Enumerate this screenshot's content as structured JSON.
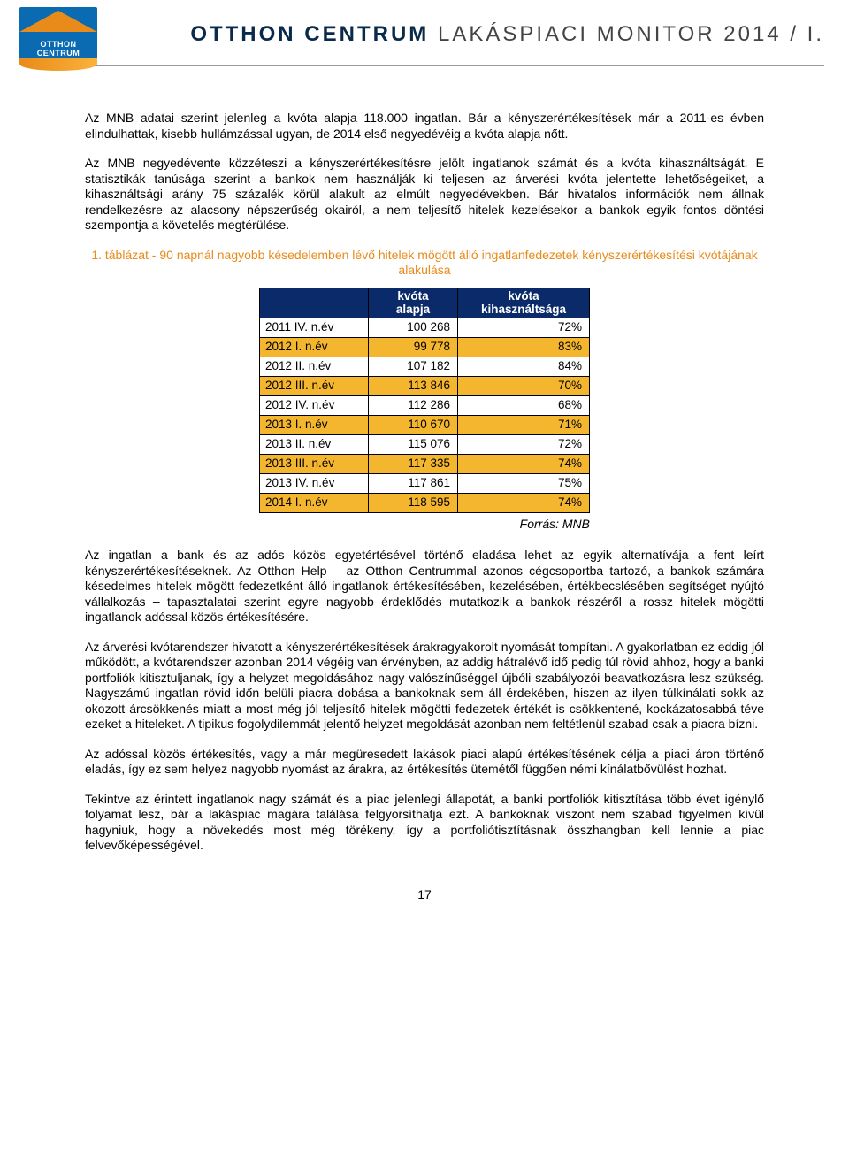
{
  "header": {
    "logo_line1": "OTTHON",
    "logo_line2": "CENTRUM",
    "title_bold": "OTTHON CENTRUM",
    "title_light": "LAKÁSPIACI MONITOR",
    "title_year": "2014 / I."
  },
  "body": {
    "p1": "Az MNB adatai szerint jelenleg a kvóta alapja 118.000 ingatlan. Bár a kényszerértékesítések már a 2011-es évben elindulhattak, kisebb hullámzással ugyan, de 2014 első negyedévéig a kvóta alapja nőtt.",
    "p2": "Az MNB negyedévente közzéteszi a kényszerértékesítésre jelölt ingatlanok számát és a kvóta kihasználtságát. E statisztikák tanúsága szerint a bankok nem használják ki teljesen az árverési kvóta jelentette lehetőségeiket, a kihasználtsági arány 75 százalék körül alakult az elmúlt negyedévekben. Bár hivatalos információk nem állnak rendelkezésre az alacsony népszerűség okairól, a nem teljesítő hitelek kezelésekor a bankok egyik fontos döntési szempontja a követelés megtérülése.",
    "caption": "1. táblázat - 90 napnál nagyobb késedelemben lévő hitelek mögött álló ingatlanfedezetek kényszerértékesítési kvótájának alakulása",
    "table": {
      "header_col1": "",
      "header_col2_line1": "kvóta",
      "header_col2_line2": "alapja",
      "header_col3_line1": "kvóta",
      "header_col3_line2": "kihasználtsága",
      "rows": [
        {
          "period": "2011 IV. n.év",
          "v1": "100 268",
          "v2": "72%",
          "band": false
        },
        {
          "period": "2012 I. n.év",
          "v1": "99 778",
          "v2": "83%",
          "band": true
        },
        {
          "period": "2012 II. n.év",
          "v1": "107 182",
          "v2": "84%",
          "band": false
        },
        {
          "period": "2012 III. n.év",
          "v1": "113 846",
          "v2": "70%",
          "band": true
        },
        {
          "period": "2012 IV. n.év",
          "v1": "112 286",
          "v2": "68%",
          "band": false
        },
        {
          "period": "2013 I. n.év",
          "v1": "110 670",
          "v2": "71%",
          "band": true
        },
        {
          "period": "2013 II. n.év",
          "v1": "115 076",
          "v2": "72%",
          "band": false
        },
        {
          "period": "2013 III. n.év",
          "v1": "117 335",
          "v2": "74%",
          "band": true
        },
        {
          "period": "2013 IV. n.év",
          "v1": "117 861",
          "v2": "75%",
          "band": false
        },
        {
          "period": "2014 I. n.év",
          "v1": "118 595",
          "v2": "74%",
          "band": true
        }
      ],
      "source": "Forrás: MNB",
      "col_widths": {
        "c1": 110,
        "c2": 88,
        "c3": 136
      },
      "colors": {
        "header_bg": "#0a2a6a",
        "band_bg": "#f4b62f",
        "border": "#000000"
      }
    },
    "p3": "Az ingatlan a bank és az adós közös egyetértésével történő eladása lehet az egyik alternatívája a fent leírt kényszerértékesítéseknek. Az Otthon Help – az Otthon Centrummal azonos cégcsoportba tartozó, a bankok számára késedelmes hitelek mögött fedezetként álló ingatlanok értékesítésében, kezelésében, értékbecslésében segítséget nyújtó vállalkozás – tapasztalatai szerint egyre nagyobb érdeklődés mutatkozik a bankok részéről a rossz hitelek mögötti ingatlanok adóssal közös értékesítésére.",
    "p4": "Az árverési kvótarendszer hivatott a kényszerértékesítések árakragyakorolt nyomását tompítani. A gyakorlatban ez eddig jól működött, a kvótarendszer azonban 2014 végéig van érvényben, az addig hátralévő idő pedig túl rövid ahhoz, hogy a banki portfoliók kitisztuljanak, így a helyzet megoldásához nagy valószínűséggel újbóli szabályozói beavatkozásra lesz szükség. Nagyszámú ingatlan rövid időn belüli piacra dobása a bankoknak sem áll érdekében, hiszen az ilyen túlkínálati sokk az okozott árcsökkenés miatt a most még jól teljesítő hitelek mögötti fedezetek értékét is csökkentené, kockázatosabbá téve ezeket a hiteleket. A tipikus fogolydilemmát jelentő helyzet megoldását azonban nem feltétlenül szabad csak a piacra bízni.",
    "p5": "Az adóssal közös értékesítés, vagy a már megüresedett lakások piaci alapú értékesítésének célja a piaci áron történő eladás, így ez sem helyez nagyobb nyomást az árakra, az értékesítés ütemétől függően némi kínálatbővülést hozhat.",
    "p6": "Tekintve az érintett ingatlanok nagy számát és a piac jelenlegi állapotát, a banki portfoliók kitisztítása több évet igénylő folyamat lesz, bár a lakáspiac magára találása felgyorsíthatja ezt. A bankoknak viszont nem szabad figyelmen kívül hagyniuk, hogy a növekedés most még törékeny, így a portfoliótisztításnak összhangban kell lennie a piac felvevőképességével."
  },
  "page_number": "17"
}
